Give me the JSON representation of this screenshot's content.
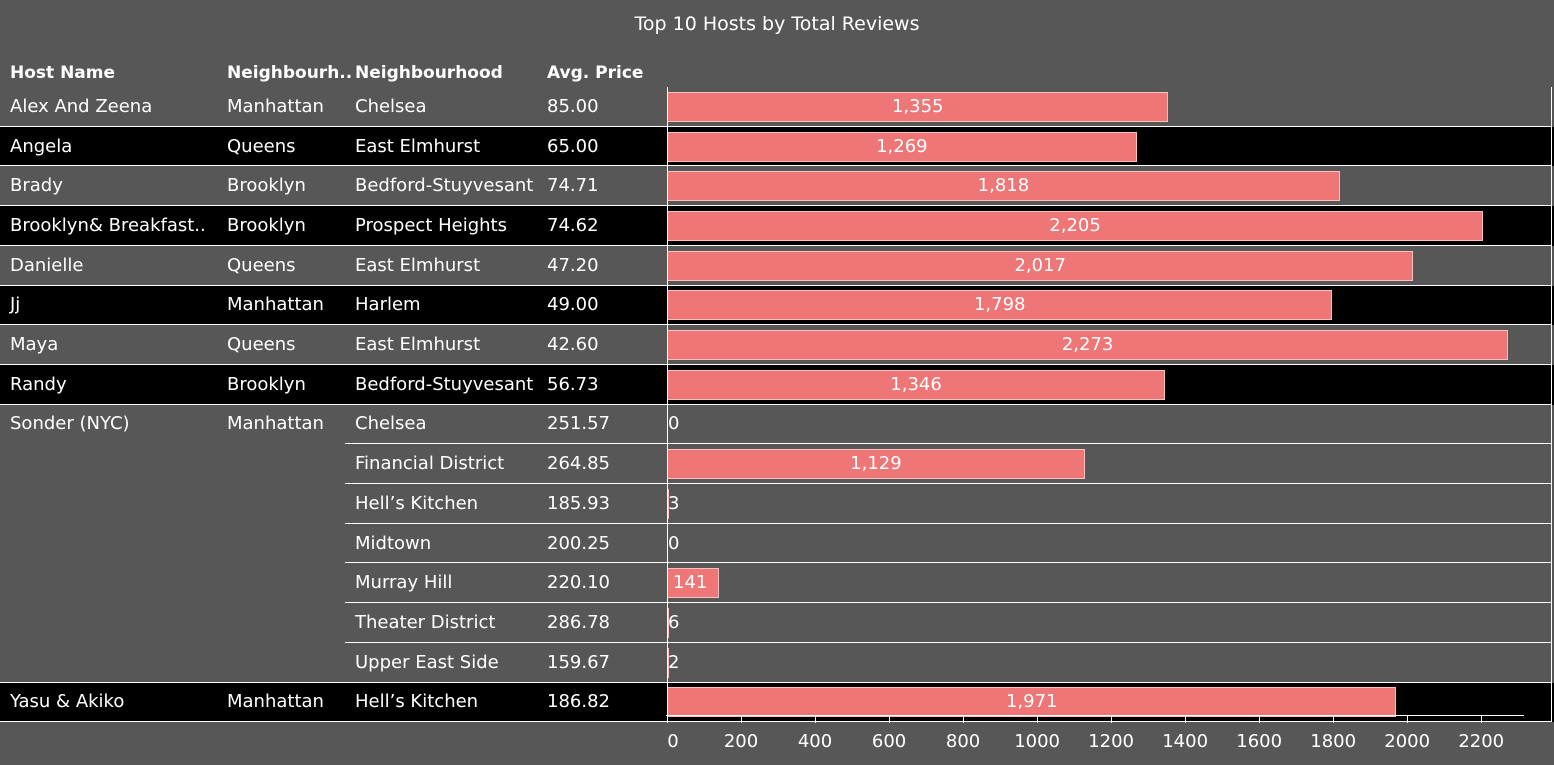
{
  "title": "Top 10 Hosts by Total Reviews",
  "columns": {
    "host": "Host Name",
    "group": "Neighbourh..",
    "neighbourhood": "Neighbourhood",
    "price": "Avg. Price"
  },
  "colors": {
    "background": "#575757",
    "band": "#000000",
    "bar": "#ef7676"
  },
  "chart_data": {
    "type": "bar",
    "orientation": "horizontal",
    "title": "Top 10 Hosts by Total Reviews",
    "xlim": [
      0,
      2300
    ],
    "xticks": [
      0,
      200,
      400,
      600,
      800,
      1000,
      1200,
      1400,
      1600,
      1800,
      2000,
      2200
    ],
    "rows": [
      {
        "host": "Alex And Zeena",
        "group": "Manhattan",
        "neighbourhood": "Chelsea",
        "price": "85.00",
        "value": 1355,
        "label": "1,355"
      },
      {
        "host": "Angela",
        "group": "Queens",
        "neighbourhood": "East Elmhurst",
        "price": "65.00",
        "value": 1269,
        "label": "1,269"
      },
      {
        "host": "Brady",
        "group": "Brooklyn",
        "neighbourhood": "Bedford-Stuyvesant",
        "price": "74.71",
        "value": 1818,
        "label": "1,818"
      },
      {
        "host": "Brooklyn&  Breakfast..",
        "group": "Brooklyn",
        "neighbourhood": "Prospect Heights",
        "price": "74.62",
        "value": 2205,
        "label": "2,205"
      },
      {
        "host": "Danielle",
        "group": "Queens",
        "neighbourhood": "East Elmhurst",
        "price": "47.20",
        "value": 2017,
        "label": "2,017"
      },
      {
        "host": "Jj",
        "group": "Manhattan",
        "neighbourhood": "Harlem",
        "price": "49.00",
        "value": 1798,
        "label": "1,798"
      },
      {
        "host": "Maya",
        "group": "Queens",
        "neighbourhood": "East Elmhurst",
        "price": "42.60",
        "value": 2273,
        "label": "2,273"
      },
      {
        "host": "Randy",
        "group": "Brooklyn",
        "neighbourhood": "Bedford-Stuyvesant",
        "price": "56.73",
        "value": 1346,
        "label": "1,346"
      },
      {
        "host": "Sonder (NYC)",
        "group": "Manhattan",
        "neighbourhood": "Chelsea",
        "price": "251.57",
        "value": 0,
        "label": "0"
      },
      {
        "host": "",
        "group": "",
        "neighbourhood": "Financial District",
        "price": "264.85",
        "value": 1129,
        "label": "1,129"
      },
      {
        "host": "",
        "group": "",
        "neighbourhood": "Hell’s Kitchen",
        "price": "185.93",
        "value": 3,
        "label": "3"
      },
      {
        "host": "",
        "group": "",
        "neighbourhood": "Midtown",
        "price": "200.25",
        "value": 0,
        "label": "0"
      },
      {
        "host": "",
        "group": "",
        "neighbourhood": "Murray Hill",
        "price": "220.10",
        "value": 141,
        "label": "141"
      },
      {
        "host": "",
        "group": "",
        "neighbourhood": "Theater District",
        "price": "286.78",
        "value": 6,
        "label": "6"
      },
      {
        "host": "",
        "group": "",
        "neighbourhood": "Upper East Side",
        "price": "159.67",
        "value": 2,
        "label": "2"
      },
      {
        "host": "Yasu & Akiko",
        "group": "Manhattan",
        "neighbourhood": "Hell’s Kitchen",
        "price": "186.82",
        "value": 1971,
        "label": "1,971"
      }
    ]
  }
}
